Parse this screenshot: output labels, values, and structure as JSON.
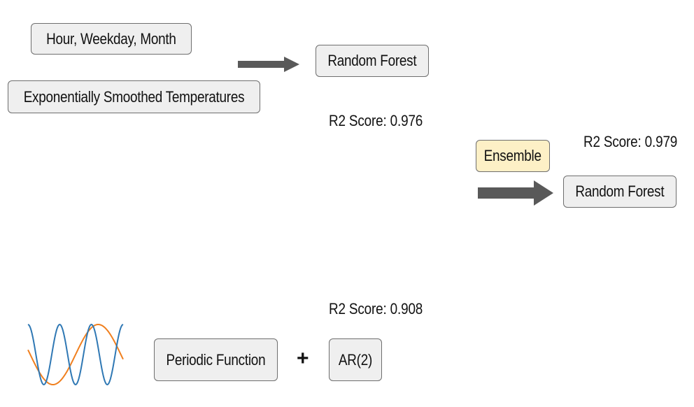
{
  "top_pipeline": {
    "input_features": "Hour, Weekday, Month",
    "smoothed_temps": "Exponentially Smoothed Temperatures",
    "model": "Random Forest",
    "score": "R2 Score: 0.976"
  },
  "ensemble": {
    "label": "Ensemble",
    "model": "Random Forest",
    "score": "R2 Score: 0.979"
  },
  "bottom_pipeline": {
    "periodic": "Periodic Function",
    "plus": "+",
    "ar": "AR(2)",
    "score": "R2 Score: 0.908"
  },
  "colors": {
    "box_fill": "#efefef",
    "box_border": "#6e6e6e",
    "ensemble_fill": "#fdf0c6",
    "arrow": "#595959",
    "wave_blue": "#2f78b4",
    "wave_orange": "#f07f1e"
  }
}
